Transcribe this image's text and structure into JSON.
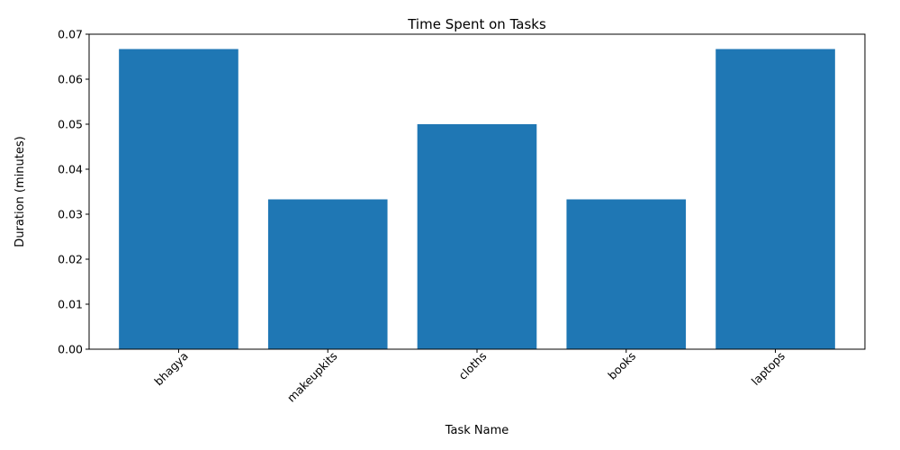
{
  "chart_data": {
    "type": "bar",
    "title": "Time Spent on Tasks",
    "xlabel": "Task Name",
    "ylabel": "Duration (minutes)",
    "categories": [
      "bhagya",
      "makeupkits",
      "cloths",
      "books",
      "laptops"
    ],
    "values": [
      0.0667,
      0.0333,
      0.05,
      0.0333,
      0.0667
    ],
    "ylim": [
      0,
      0.07
    ],
    "yticks": [
      "0.00",
      "0.01",
      "0.02",
      "0.03",
      "0.04",
      "0.05",
      "0.06",
      "0.07"
    ],
    "bar_color": "#1f77b4",
    "grid": false,
    "legend": "none",
    "xtick_rotation_deg": 45
  }
}
